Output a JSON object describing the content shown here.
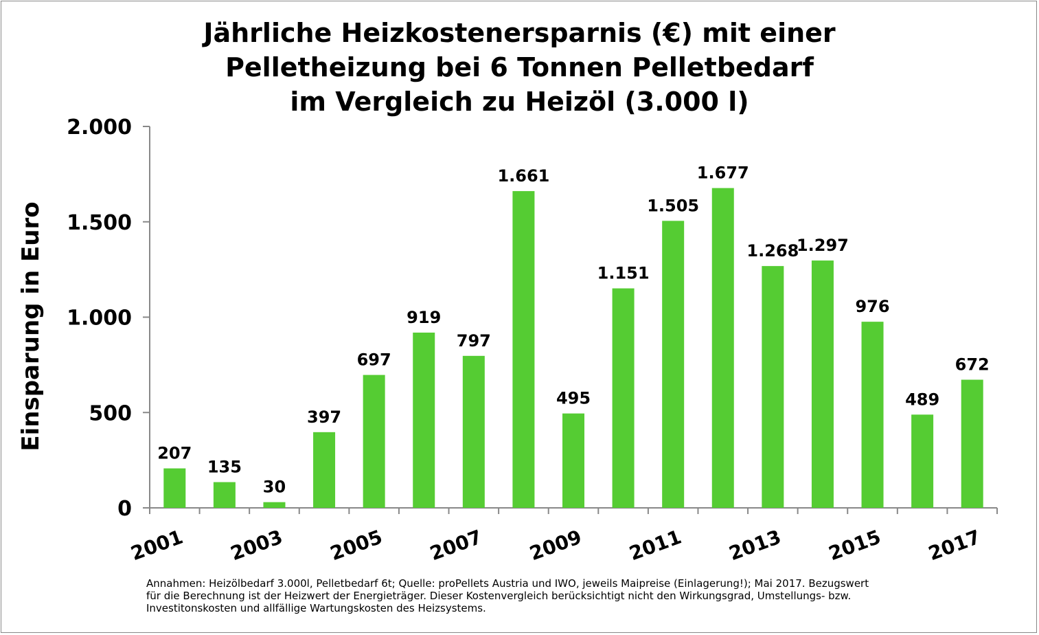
{
  "chart_data": {
    "type": "bar",
    "title_lines": [
      "Jährliche Heizkostenersparnis (€) mit einer",
      "Pelletheizung bei 6 Tonnen Pelletbedarf",
      "im Vergleich zu Heizöl (3.000 l)"
    ],
    "xlabel": "",
    "ylabel": "Einsparung in Euro",
    "ylim": [
      0,
      2000
    ],
    "yticks": [
      0,
      500,
      1000,
      1500,
      2000
    ],
    "ytick_labels": [
      "0",
      "500",
      "1.000",
      "1.500",
      "2.000"
    ],
    "categories": [
      "2001",
      "2002",
      "2003",
      "2004",
      "2005",
      "2006",
      "2007",
      "2008",
      "2009",
      "2010",
      "2011",
      "2012",
      "2013",
      "2014",
      "2015",
      "2016",
      "2017"
    ],
    "xtick_labels_shown": [
      "2001",
      "2003",
      "2005",
      "2007",
      "2009",
      "2011",
      "2013",
      "2015",
      "2017"
    ],
    "values": [
      207,
      135,
      30,
      397,
      697,
      919,
      797,
      1661,
      495,
      1151,
      1505,
      1677,
      1268,
      1297,
      976,
      489,
      672
    ],
    "data_labels": [
      "207",
      "135",
      "30",
      "397",
      "697",
      "919",
      "797",
      "1.661",
      "495",
      "1.151",
      "1.505",
      "1.677",
      "1.268",
      "1.297",
      "976",
      "489",
      "672"
    ],
    "bar_color": "#55cc33",
    "grid": false,
    "legend": "none"
  },
  "footnote": [
    "Annahmen: Heizölbedarf 3.000l, Pelletbedarf 6t; Quelle: proPellets Austria und IWO, jeweils Maipreise (Einlagerung!); Mai 2017. Bezugswert",
    "für die Berechnung ist der Heizwert der Energieträger. Dieser Kostenvergleich berücksichtigt nicht den Wirkungsgrad, Umstellungs- bzw.",
    "Investitonskosten und allfällige Wartungskosten des Heizsystems."
  ]
}
